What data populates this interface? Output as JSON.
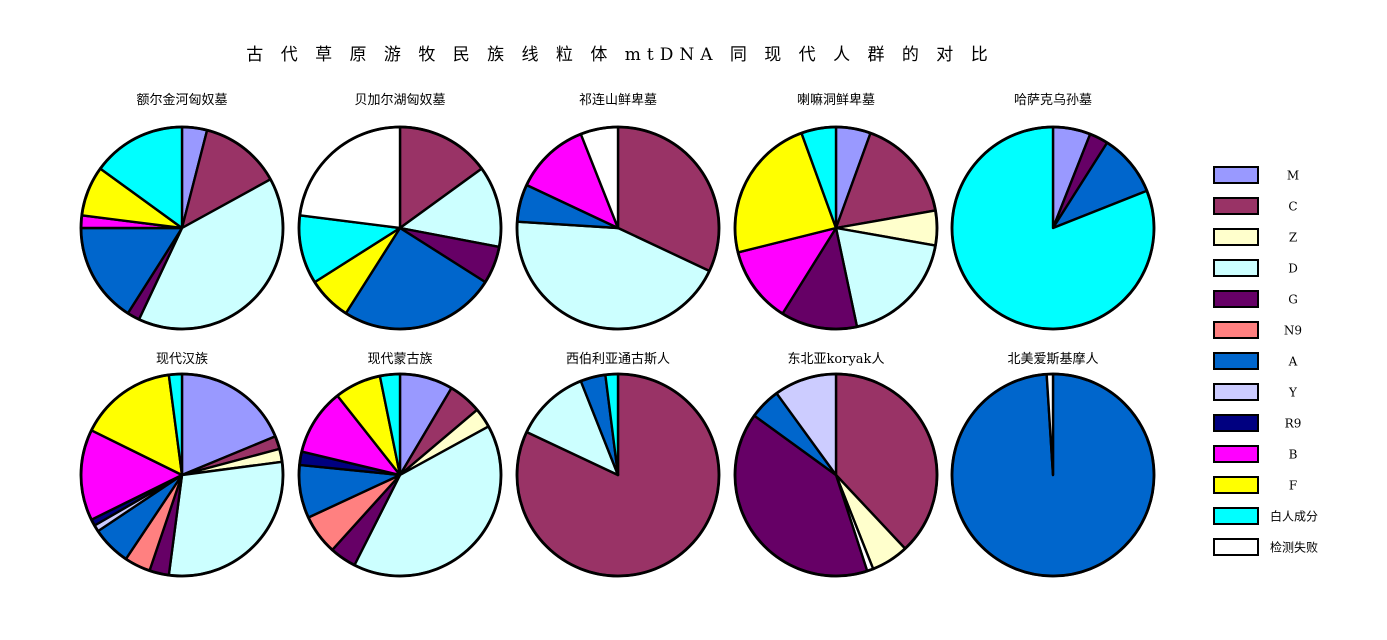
{
  "chart_data": {
    "type": "pie",
    "title": "古 代 草 原 游 牧 民 族 线 粒 体 mtDNA 同 现 代 人 群 的 对 比",
    "legend": {
      "placement": "right",
      "entries": [
        {
          "key": "M",
          "label": "M",
          "color": "#9999ff"
        },
        {
          "key": "C",
          "label": "C",
          "color": "#993366"
        },
        {
          "key": "Z",
          "label": "Z",
          "color": "#ffffcc"
        },
        {
          "key": "D",
          "label": "D",
          "color": "#ccffff"
        },
        {
          "key": "G",
          "label": "G",
          "color": "#660066"
        },
        {
          "key": "N9",
          "label": "N9",
          "color": "#ff8080"
        },
        {
          "key": "A",
          "label": "A",
          "color": "#0066cc"
        },
        {
          "key": "Y",
          "label": "Y",
          "color": "#ccccff"
        },
        {
          "key": "R9",
          "label": "R9",
          "color": "#000080"
        },
        {
          "key": "B",
          "label": "B",
          "color": "#ff00ff"
        },
        {
          "key": "F",
          "label": "F",
          "color": "#ffff00"
        },
        {
          "key": "W",
          "label": "白人成分",
          "color": "#00ffff"
        },
        {
          "key": "X",
          "label": "检测失败",
          "color": "#ffffff"
        }
      ]
    },
    "pies": [
      {
        "title": "额尔金河匈奴墓",
        "slices": [
          {
            "k": "M",
            "v": 4
          },
          {
            "k": "C",
            "v": 13
          },
          {
            "k": "D",
            "v": 40
          },
          {
            "k": "G",
            "v": 2
          },
          {
            "k": "A",
            "v": 16
          },
          {
            "k": "B",
            "v": 2
          },
          {
            "k": "F",
            "v": 8
          },
          {
            "k": "W",
            "v": 15
          }
        ]
      },
      {
        "title": "贝加尔湖匈奴墓",
        "slices": [
          {
            "k": "C",
            "v": 15
          },
          {
            "k": "D",
            "v": 13
          },
          {
            "k": "G",
            "v": 6
          },
          {
            "k": "A",
            "v": 25
          },
          {
            "k": "F",
            "v": 7
          },
          {
            "k": "W",
            "v": 11
          },
          {
            "k": "X",
            "v": 23
          }
        ]
      },
      {
        "title": "祁连山鲜卑墓",
        "slices": [
          {
            "k": "C",
            "v": 32
          },
          {
            "k": "D",
            "v": 44
          },
          {
            "k": "A",
            "v": 6
          },
          {
            "k": "B",
            "v": 12
          },
          {
            "k": "X",
            "v": 6
          }
        ]
      },
      {
        "title": "喇嘛洞鲜卑墓",
        "slices": [
          {
            "k": "M",
            "v": 5
          },
          {
            "k": "C",
            "v": 15
          },
          {
            "k": "Z",
            "v": 5
          },
          {
            "k": "D",
            "v": 17
          },
          {
            "k": "G",
            "v": 11
          },
          {
            "k": "B",
            "v": 11
          },
          {
            "k": "F",
            "v": 21
          },
          {
            "k": "W",
            "v": 5
          }
        ]
      },
      {
        "title": "哈萨克乌孙墓",
        "slices": [
          {
            "k": "M",
            "v": 6
          },
          {
            "k": "G",
            "v": 3
          },
          {
            "k": "A",
            "v": 10
          },
          {
            "k": "W",
            "v": 81
          }
        ]
      },
      {
        "title": "现代汉族",
        "slices": [
          {
            "k": "M",
            "v": 18
          },
          {
            "k": "C",
            "v": 2
          },
          {
            "k": "Z",
            "v": 2
          },
          {
            "k": "D",
            "v": 28
          },
          {
            "k": "G",
            "v": 3
          },
          {
            "k": "N9",
            "v": 4
          },
          {
            "k": "A",
            "v": 6
          },
          {
            "k": "Y",
            "v": 1
          },
          {
            "k": "R9",
            "v": 1
          },
          {
            "k": "B",
            "v": 14
          },
          {
            "k": "F",
            "v": 15
          },
          {
            "k": "W",
            "v": 2
          }
        ]
      },
      {
        "title": "现代蒙古族",
        "slices": [
          {
            "k": "M",
            "v": 8
          },
          {
            "k": "C",
            "v": 5
          },
          {
            "k": "Z",
            "v": 3
          },
          {
            "k": "D",
            "v": 38
          },
          {
            "k": "G",
            "v": 4
          },
          {
            "k": "N9",
            "v": 6
          },
          {
            "k": "A",
            "v": 8
          },
          {
            "k": "R9",
            "v": 2
          },
          {
            "k": "B",
            "v": 10
          },
          {
            "k": "F",
            "v": 7
          },
          {
            "k": "W",
            "v": 3
          }
        ]
      },
      {
        "title": "西伯利亚通古斯人",
        "slices": [
          {
            "k": "C",
            "v": 82
          },
          {
            "k": "D",
            "v": 12
          },
          {
            "k": "A",
            "v": 4
          },
          {
            "k": "W",
            "v": 2
          }
        ]
      },
      {
        "title": "东北亚koryak人",
        "slices": [
          {
            "k": "C",
            "v": 38
          },
          {
            "k": "Z",
            "v": 6
          },
          {
            "k": "X",
            "v": 1
          },
          {
            "k": "G",
            "v": 40
          },
          {
            "k": "A",
            "v": 5
          },
          {
            "k": "Y",
            "v": 10
          }
        ]
      },
      {
        "title": "北美爱斯基摩人",
        "slices": [
          {
            "k": "A",
            "v": 99
          },
          {
            "k": "X",
            "v": 1
          }
        ]
      }
    ]
  }
}
